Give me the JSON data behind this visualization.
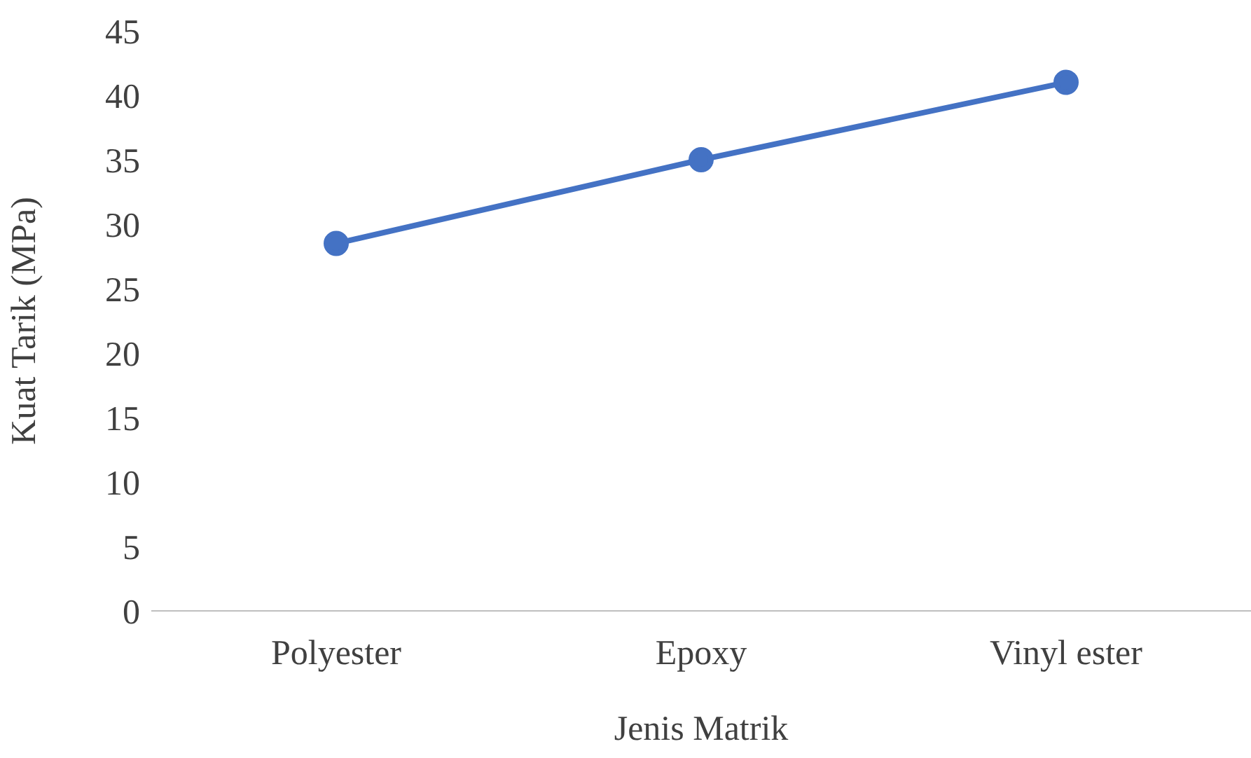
{
  "chart_data": {
    "type": "line",
    "xlabel": "Jenis Matrik",
    "ylabel": "Kuat Tarik (MPa)",
    "categories": [
      "Polyester",
      "Epoxy",
      "Vinyl ester"
    ],
    "series": [
      {
        "color": "#4472c4",
        "values": [
          28.5,
          35,
          41
        ],
        "marker": "circle",
        "line_style": "solid"
      }
    ],
    "ylim": [
      0,
      45
    ],
    "yticks": [
      0,
      5,
      10,
      15,
      20,
      25,
      30,
      35,
      40,
      45
    ],
    "grid": false
  }
}
